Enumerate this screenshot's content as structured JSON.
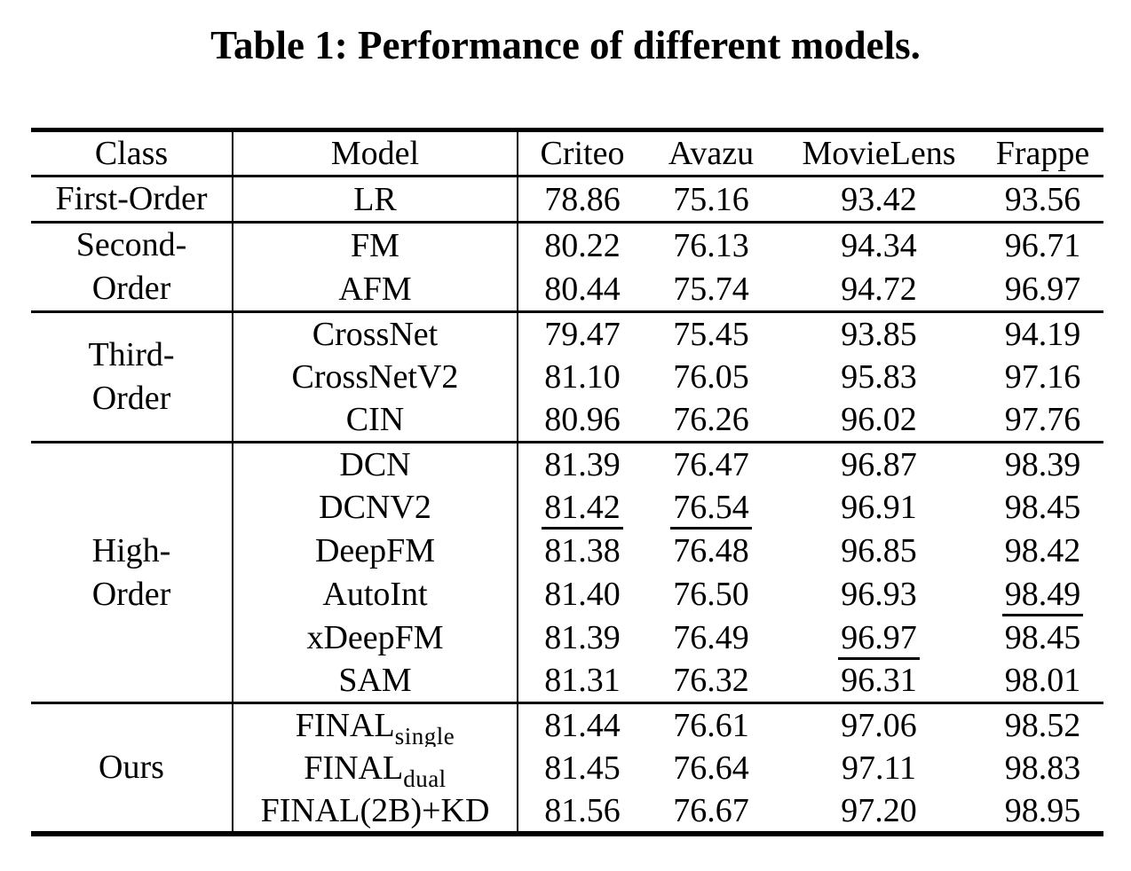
{
  "title": "Table 1: Performance of different models.",
  "table": {
    "columns": [
      "Class",
      "Model",
      "Criteo",
      "Avazu",
      "MovieLens",
      "Frappe"
    ],
    "groups": [
      {
        "class_lines": [
          "First-Order"
        ],
        "rows": [
          {
            "model": "LR",
            "values": [
              "78.86",
              "75.16",
              "93.42",
              "93.56"
            ]
          }
        ]
      },
      {
        "class_lines": [
          "Second-",
          "Order"
        ],
        "rows": [
          {
            "model": "FM",
            "values": [
              "80.22",
              "76.13",
              "94.34",
              "96.71"
            ]
          },
          {
            "model": "AFM",
            "values": [
              "80.44",
              "75.74",
              "94.72",
              "96.97"
            ]
          }
        ]
      },
      {
        "class_lines": [
          "Third-",
          "Order"
        ],
        "rows": [
          {
            "model": "CrossNet",
            "values": [
              "79.47",
              "75.45",
              "93.85",
              "94.19"
            ]
          },
          {
            "model": "CrossNetV2",
            "values": [
              "81.10",
              "76.05",
              "95.83",
              "97.16"
            ]
          },
          {
            "model": "CIN",
            "values": [
              "80.96",
              "76.26",
              "96.02",
              "97.76"
            ]
          }
        ]
      },
      {
        "class_lines": [
          "High-",
          "Order"
        ],
        "rows": [
          {
            "model": "DCN",
            "values": [
              "81.39",
              "76.47",
              "96.87",
              "98.39"
            ]
          },
          {
            "model": "DCNV2",
            "values": [
              {
                "text": "81.42",
                "underline": true
              },
              {
                "text": "76.54",
                "underline": true
              },
              "96.91",
              "98.45"
            ]
          },
          {
            "model": "DeepFM",
            "values": [
              "81.38",
              "76.48",
              "96.85",
              "98.42"
            ]
          },
          {
            "model": "AutoInt",
            "values": [
              "81.40",
              "76.50",
              "96.93",
              {
                "text": "98.49",
                "underline": true
              }
            ]
          },
          {
            "model": "xDeepFM",
            "values": [
              "81.39",
              "76.49",
              {
                "text": "96.97",
                "underline": true
              },
              "98.45"
            ]
          },
          {
            "model": "SAM",
            "values": [
              "81.31",
              "76.32",
              "96.31",
              "98.01"
            ]
          }
        ]
      },
      {
        "class_lines": [
          "Ours"
        ],
        "rows": [
          {
            "model": {
              "base": "FINAL",
              "sub": "single"
            },
            "values": [
              "81.44",
              "76.61",
              "97.06",
              "98.52"
            ]
          },
          {
            "model": {
              "base": "FINAL",
              "sub": "dual"
            },
            "values": [
              "81.45",
              "76.64",
              "97.11",
              "98.83"
            ]
          },
          {
            "model": "FINAL(2B)+KD",
            "bold": true,
            "values": [
              "81.56",
              "76.67",
              "97.20",
              "98.95"
            ]
          }
        ]
      }
    ]
  }
}
